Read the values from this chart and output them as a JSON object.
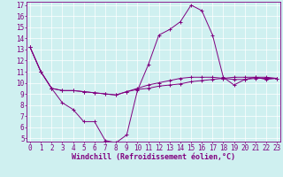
{
  "xlabel": "Windchill (Refroidissement éolien,°C)",
  "ylabel": "",
  "bg_color": "#cff0f0",
  "line_color": "#800080",
  "xmin": 0,
  "xmax": 23,
  "ymin": 5,
  "ymax": 17,
  "series": [
    [
      13.2,
      11.0,
      9.5,
      8.2,
      7.6,
      6.5,
      6.5,
      4.8,
      4.6,
      5.3,
      9.3,
      11.6,
      14.3,
      14.8,
      15.5,
      17.0,
      16.5,
      14.3,
      10.5,
      9.8,
      10.3,
      10.5,
      10.3,
      10.4
    ],
    [
      13.2,
      11.0,
      9.5,
      9.3,
      9.3,
      9.2,
      9.1,
      9.0,
      8.9,
      9.2,
      9.4,
      9.5,
      9.7,
      9.8,
      9.9,
      10.1,
      10.2,
      10.3,
      10.4,
      10.5,
      10.5,
      10.5,
      10.5,
      10.4
    ],
    [
      13.2,
      11.0,
      9.5,
      9.3,
      9.3,
      9.2,
      9.1,
      9.0,
      8.9,
      9.2,
      9.5,
      9.8,
      10.0,
      10.2,
      10.4,
      10.5,
      10.5,
      10.5,
      10.4,
      10.3,
      10.3,
      10.4,
      10.4,
      10.4
    ]
  ],
  "tick_fontsize": 5.5,
  "label_fontsize": 6.0
}
